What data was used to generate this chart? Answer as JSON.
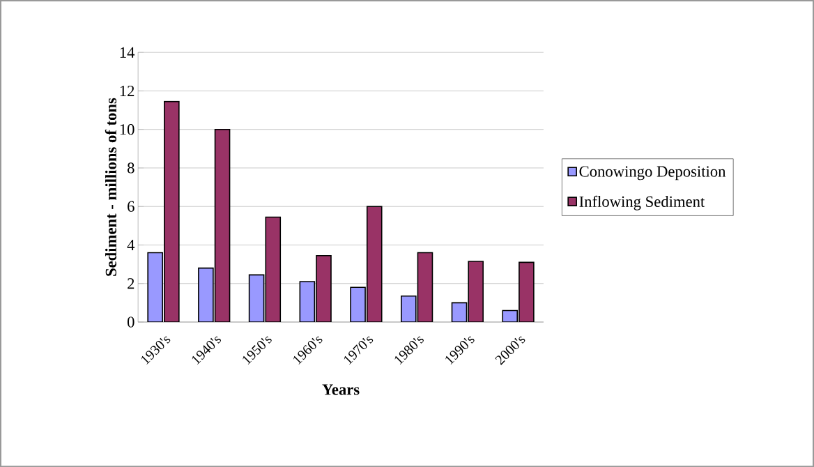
{
  "chart_data": {
    "type": "bar",
    "xlabel": "Years",
    "ylabel": "Sediment - millions of tons",
    "categories": [
      "1930's",
      "1940's",
      "1950's",
      "1960's",
      "1970's",
      "1980's",
      "1990's",
      "2000's"
    ],
    "series": [
      {
        "name": "Conowingo Deposition",
        "color": "#9999ff",
        "values": [
          3.6,
          2.8,
          2.45,
          2.1,
          1.8,
          1.35,
          1.0,
          0.6
        ]
      },
      {
        "name": "Inflowing Sediment",
        "color": "#993366",
        "values": [
          11.45,
          10.0,
          5.45,
          3.45,
          6.0,
          3.6,
          3.15,
          3.1
        ]
      }
    ],
    "ylim": [
      0,
      14
    ],
    "yticks": [
      0,
      2,
      4,
      6,
      8,
      10,
      12,
      14
    ],
    "grid": "y",
    "legend": "right"
  }
}
